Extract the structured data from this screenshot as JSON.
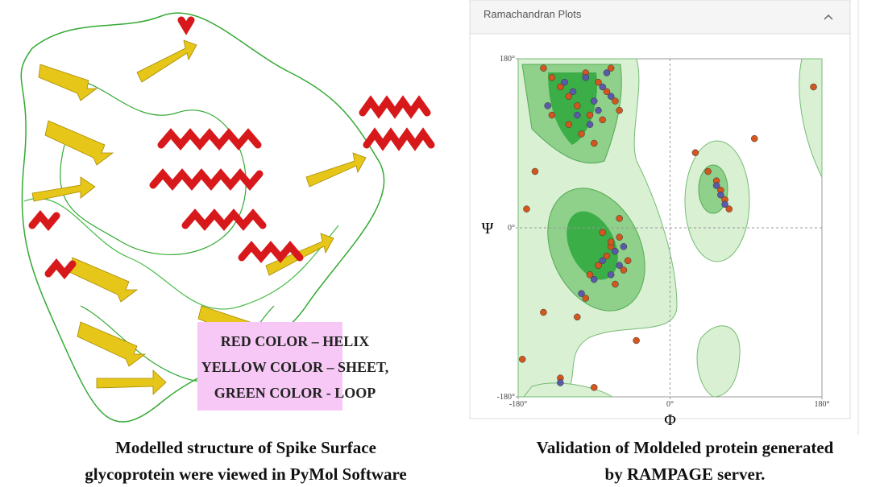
{
  "left_panel": {
    "legend": [
      "RED COLOR – HELIX",
      "YELLOW COLOR – SHEET,",
      "GREEN COLOR - LOOP"
    ],
    "caption": [
      "Modelled structure of Spike Surface",
      "glycoprotein were viewed in PyMol Software"
    ]
  },
  "right_panel": {
    "caption": [
      "Validation of Moldeled protein generated",
      "by RAMPAGE server."
    ]
  },
  "chart_data": {
    "type": "scatter",
    "title": "Ramachandran Plots",
    "xlabel": "Φ",
    "ylabel": "Ψ",
    "xlim": [
      -180,
      180
    ],
    "ylim": [
      -180,
      180
    ],
    "xticks": [
      {
        "value": -180,
        "label": "-180°"
      },
      {
        "value": 0,
        "label": "0°"
      },
      {
        "value": 180,
        "label": "180°"
      }
    ],
    "yticks": [
      {
        "value": -180,
        "label": "-180°"
      },
      {
        "value": 0,
        "label": "0°"
      },
      {
        "value": 180,
        "label": "180°"
      }
    ],
    "series": [
      {
        "color": "#d2561e",
        "x": [
          -150,
          -140,
          -130,
          -120,
          -110,
          -100,
          -95,
          -85,
          -75,
          -70,
          -65,
          -60,
          -120,
          -105,
          -90,
          -80,
          -140,
          -160,
          -170,
          -60,
          -70,
          -75,
          -85,
          -95,
          -65,
          -55,
          -50,
          -80,
          -100,
          -110,
          55,
          60,
          65,
          70,
          45,
          30,
          -175,
          -130,
          -90,
          -40,
          100,
          170,
          -150,
          -60,
          -70
        ],
        "y": [
          170,
          160,
          150,
          140,
          130,
          165,
          120,
          155,
          145,
          170,
          135,
          125,
          110,
          100,
          90,
          115,
          120,
          60,
          20,
          -10,
          -20,
          -30,
          -40,
          -50,
          -60,
          -45,
          -35,
          -5,
          -75,
          -95,
          50,
          40,
          30,
          20,
          60,
          80,
          -140,
          -160,
          -170,
          -120,
          95,
          150,
          -90,
          10,
          -15
        ]
      },
      {
        "color": "#5a5aa8",
        "x": [
          -125,
          -115,
          -100,
          -90,
          -80,
          -70,
          -110,
          -95,
          -85,
          -75,
          -65,
          -60,
          -70,
          -80,
          -55,
          -90,
          60,
          55,
          65,
          -130,
          -145,
          -105
        ],
        "y": [
          155,
          145,
          160,
          135,
          150,
          140,
          120,
          110,
          125,
          165,
          -25,
          -40,
          -50,
          -35,
          -20,
          -55,
          35,
          45,
          25,
          -165,
          130,
          -70
        ]
      }
    ]
  }
}
